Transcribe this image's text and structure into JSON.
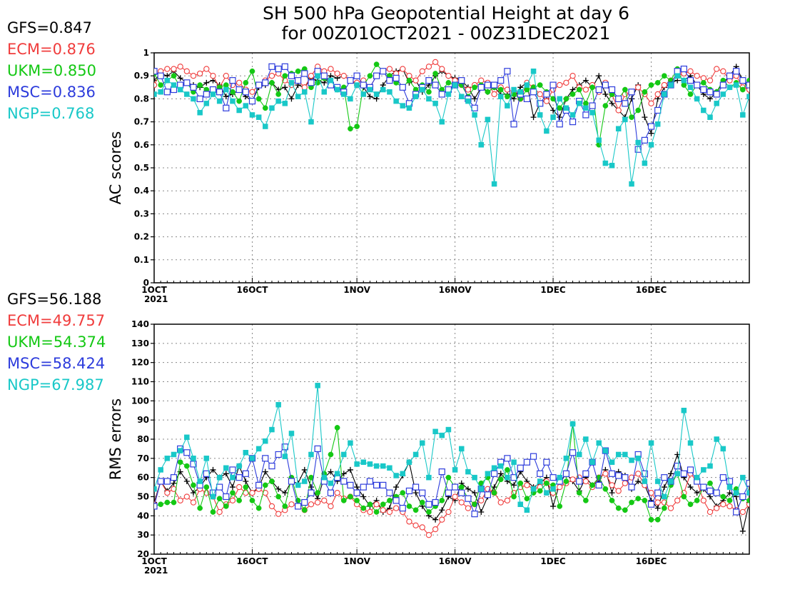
{
  "title": {
    "line1": "SH 500 hPa Geopotential Height at day 6",
    "line2": "for 00Z01OCT2021 - 00Z31DEC2021"
  },
  "colors": {
    "GFS": "#000000",
    "ECM": "#f03c3c",
    "UKM": "#14c814",
    "MSC": "#2d3cdc",
    "NGP": "#19c8c8"
  },
  "chart_data": [
    {
      "type": "line",
      "ylabel": "AC scores",
      "ylim": [
        0,
        1
      ],
      "yticks": [
        "0",
        "0.1",
        "0.2",
        "0.3",
        "0.4",
        "0.5",
        "0.6",
        "0.7",
        "0.8",
        "0.9",
        "1"
      ],
      "xlim": [
        1,
        92
      ],
      "xtick_days": [
        1,
        16,
        32,
        47,
        62,
        77
      ],
      "xtick_labels": [
        "1OCT",
        "16OCT",
        "1NOV",
        "16NOV",
        "1DEC",
        "16DEC"
      ],
      "xtick_year": "2021",
      "grid": true,
      "series": [
        {
          "name": "GFS",
          "score": "GFS=0.847",
          "marker": "plus",
          "values": [
            0.88,
            0.91,
            0.9,
            0.92,
            0.89,
            0.87,
            0.86,
            0.85,
            0.87,
            0.88,
            0.86,
            0.81,
            0.82,
            0.84,
            0.81,
            0.79,
            0.85,
            0.86,
            0.87,
            0.84,
            0.85,
            0.8,
            0.86,
            0.85,
            0.89,
            0.88,
            0.87,
            0.9,
            0.89,
            0.9,
            0.88,
            0.86,
            0.85,
            0.81,
            0.8,
            0.86,
            0.9,
            0.92,
            0.93,
            0.87,
            0.88,
            0.83,
            0.86,
            0.9,
            0.92,
            0.9,
            0.89,
            0.88,
            0.85,
            0.8,
            0.85,
            0.83,
            0.85,
            0.82,
            0.82,
            0.8,
            0.85,
            0.87,
            0.72,
            0.78,
            0.8,
            0.75,
            0.72,
            0.8,
            0.84,
            0.86,
            0.88,
            0.85,
            0.9,
            0.82,
            0.78,
            0.75,
            0.72,
            0.8,
            0.86,
            0.72,
            0.65,
            0.8,
            0.85,
            0.87,
            0.88,
            0.88,
            0.9,
            0.86,
            0.82,
            0.8,
            0.83,
            0.87,
            0.9,
            0.94,
            0.88,
            0.84
          ]
        },
        {
          "name": "ECM",
          "score": "ECM=0.876",
          "marker": "circle",
          "values": [
            0.86,
            0.92,
            0.93,
            0.93,
            0.94,
            0.92,
            0.9,
            0.91,
            0.93,
            0.9,
            0.85,
            0.9,
            0.86,
            0.87,
            0.84,
            0.83,
            0.86,
            0.88,
            0.9,
            0.91,
            0.88,
            0.86,
            0.88,
            0.85,
            0.9,
            0.94,
            0.92,
            0.93,
            0.91,
            0.9,
            0.88,
            0.87,
            0.88,
            0.85,
            0.9,
            0.92,
            0.93,
            0.91,
            0.93,
            0.9,
            0.88,
            0.92,
            0.94,
            0.96,
            0.93,
            0.9,
            0.88,
            0.86,
            0.84,
            0.86,
            0.88,
            0.87,
            0.82,
            0.85,
            0.84,
            0.83,
            0.8,
            0.87,
            0.85,
            0.82,
            0.79,
            0.84,
            0.86,
            0.87,
            0.9,
            0.85,
            0.84,
            0.86,
            0.83,
            0.87,
            0.82,
            0.75,
            0.82,
            0.83,
            0.85,
            0.82,
            0.78,
            0.82,
            0.86,
            0.88,
            0.9,
            0.91,
            0.92,
            0.9,
            0.89,
            0.88,
            0.93,
            0.92,
            0.88,
            0.9,
            0.85,
            0.84
          ]
        },
        {
          "name": "UKM",
          "score": "UKM=0.850",
          "marker": "dot",
          "values": [
            0.91,
            0.86,
            0.88,
            0.9,
            0.85,
            0.87,
            0.83,
            0.86,
            0.84,
            0.82,
            0.85,
            0.86,
            0.83,
            0.79,
            0.87,
            0.92,
            0.8,
            0.76,
            0.87,
            0.82,
            0.9,
            0.91,
            0.92,
            0.93,
            0.85,
            0.87,
            0.89,
            0.86,
            0.84,
            0.85,
            0.67,
            0.68,
            0.86,
            0.9,
            0.95,
            0.92,
            0.9,
            0.87,
            0.85,
            0.88,
            0.84,
            0.86,
            0.83,
            0.91,
            0.84,
            0.87,
            0.86,
            0.86,
            0.81,
            0.85,
            0.86,
            0.83,
            0.85,
            0.84,
            0.81,
            0.82,
            0.8,
            0.84,
            0.85,
            0.86,
            0.83,
            0.8,
            0.76,
            0.8,
            0.82,
            0.84,
            0.78,
            0.85,
            0.6,
            0.77,
            0.82,
            0.8,
            0.84,
            0.72,
            0.75,
            0.83,
            0.86,
            0.87,
            0.9,
            0.88,
            0.93,
            0.86,
            0.82,
            0.86,
            0.87,
            0.84,
            0.83,
            0.88,
            0.85,
            0.87,
            0.84,
            0.88
          ]
        },
        {
          "name": "MSC",
          "score": "MSC=0.836",
          "marker": "square",
          "values": [
            0.92,
            0.9,
            0.83,
            0.84,
            0.86,
            0.87,
            0.85,
            0.8,
            0.82,
            0.84,
            0.83,
            0.76,
            0.88,
            0.84,
            0.83,
            0.79,
            0.86,
            0.87,
            0.94,
            0.93,
            0.94,
            0.9,
            0.88,
            0.91,
            0.87,
            0.92,
            0.9,
            0.86,
            0.85,
            0.83,
            0.88,
            0.9,
            0.86,
            0.85,
            0.9,
            0.92,
            0.88,
            0.89,
            0.85,
            0.78,
            0.82,
            0.85,
            0.88,
            0.86,
            0.82,
            0.84,
            0.86,
            0.88,
            0.8,
            0.76,
            0.85,
            0.86,
            0.86,
            0.88,
            0.92,
            0.69,
            0.82,
            0.8,
            0.83,
            0.78,
            0.82,
            0.86,
            0.69,
            0.75,
            0.7,
            0.79,
            0.73,
            0.77,
            0.84,
            0.86,
            0.84,
            0.8,
            0.78,
            0.83,
            0.58,
            0.62,
            0.68,
            0.75,
            0.82,
            0.86,
            0.92,
            0.93,
            0.88,
            0.86,
            0.84,
            0.83,
            0.82,
            0.86,
            0.9,
            0.92,
            0.88,
            0.86
          ]
        },
        {
          "name": "NGP",
          "score": "NGP=0.768",
          "marker": "filled-square",
          "values": [
            0.82,
            0.83,
            0.88,
            0.86,
            0.84,
            0.82,
            0.8,
            0.74,
            0.78,
            0.82,
            0.79,
            0.84,
            0.79,
            0.75,
            0.77,
            0.73,
            0.72,
            0.68,
            0.76,
            0.79,
            0.78,
            0.87,
            0.81,
            0.83,
            0.7,
            0.9,
            0.83,
            0.88,
            0.84,
            0.82,
            0.8,
            0.86,
            0.82,
            0.84,
            0.82,
            0.84,
            0.83,
            0.79,
            0.77,
            0.76,
            0.81,
            0.84,
            0.8,
            0.78,
            0.7,
            0.82,
            0.86,
            0.81,
            0.79,
            0.73,
            0.6,
            0.71,
            0.43,
            0.81,
            0.77,
            0.84,
            0.83,
            0.86,
            0.92,
            0.73,
            0.66,
            0.72,
            0.8,
            0.76,
            0.73,
            0.78,
            0.76,
            0.74,
            0.62,
            0.52,
            0.51,
            0.67,
            0.71,
            0.43,
            0.61,
            0.52,
            0.6,
            0.69,
            0.82,
            0.86,
            0.9,
            0.88,
            0.85,
            0.8,
            0.75,
            0.72,
            0.78,
            0.82,
            0.85,
            0.86,
            0.73,
            0.81
          ]
        }
      ]
    },
    {
      "type": "line",
      "ylabel": "RMS errors",
      "ylim": [
        20,
        140
      ],
      "yticks": [
        "20",
        "30",
        "40",
        "50",
        "60",
        "70",
        "80",
        "90",
        "100",
        "110",
        "120",
        "130",
        "140"
      ],
      "xlim": [
        1,
        92
      ],
      "xtick_days": [
        1,
        16,
        32,
        47,
        62,
        77
      ],
      "xtick_labels": [
        "1OCT",
        "16OCT",
        "1NOV",
        "16NOV",
        "1DEC",
        "16DEC"
      ],
      "xtick_year": "2021",
      "grid": true,
      "series": [
        {
          "name": "GFS",
          "score": "GFS=56.188",
          "marker": "plus",
          "values": [
            47,
            58,
            53,
            57,
            63,
            58,
            52,
            55,
            60,
            64,
            60,
            62,
            55,
            66,
            58,
            52,
            55,
            63,
            58,
            54,
            52,
            58,
            57,
            64,
            55,
            49,
            60,
            63,
            58,
            62,
            64,
            55,
            50,
            45,
            48,
            42,
            44,
            55,
            61,
            68,
            52,
            45,
            40,
            38,
            43,
            50,
            48,
            57,
            54,
            52,
            42,
            50,
            55,
            62,
            58,
            56,
            63,
            58,
            55,
            57,
            60,
            45,
            57,
            62,
            58,
            53,
            60,
            56,
            58,
            64,
            52,
            63,
            61,
            54,
            58,
            56,
            48,
            44,
            55,
            62,
            72,
            60,
            55,
            52,
            54,
            50,
            45,
            48,
            52,
            50,
            32,
            47
          ]
        },
        {
          "name": "ECM",
          "score": "ECM=49.757",
          "marker": "circle",
          "values": [
            46,
            58,
            52,
            54,
            48,
            50,
            47,
            54,
            52,
            50,
            42,
            46,
            48,
            55,
            52,
            52,
            54,
            52,
            45,
            41,
            43,
            46,
            45,
            43,
            46,
            47,
            48,
            45,
            52,
            49,
            50,
            46,
            43,
            42,
            46,
            43,
            42,
            44,
            42,
            37,
            35,
            34,
            30,
            33,
            38,
            42,
            50,
            47,
            44,
            46,
            48,
            54,
            52,
            47,
            48,
            52,
            55,
            56,
            54,
            55,
            58,
            52,
            55,
            57,
            59,
            60,
            58,
            55,
            60,
            62,
            56,
            53,
            57,
            60,
            62,
            56,
            52,
            47,
            47,
            44,
            48,
            52,
            62,
            58,
            48,
            42,
            44,
            46,
            45,
            43,
            42,
            46
          ]
        },
        {
          "name": "UKM",
          "score": "UKM=54.374",
          "marker": "dot",
          "values": [
            45,
            46,
            47,
            47,
            68,
            66,
            56,
            44,
            55,
            42,
            49,
            45,
            52,
            48,
            55,
            48,
            44,
            56,
            58,
            50,
            45,
            60,
            48,
            43,
            60,
            52,
            62,
            72,
            86,
            48,
            50,
            48,
            44,
            46,
            42,
            46,
            48,
            50,
            52,
            45,
            43,
            47,
            42,
            45,
            48,
            60,
            55,
            55,
            49,
            46,
            57,
            60,
            52,
            59,
            64,
            50,
            57,
            49,
            52,
            53,
            57,
            56,
            45,
            58,
            88,
            52,
            48,
            56,
            60,
            54,
            48,
            44,
            43,
            47,
            49,
            48,
            38,
            38,
            44,
            56,
            62,
            50,
            46,
            48,
            55,
            57,
            52,
            50,
            48,
            54,
            49,
            48
          ]
        },
        {
          "name": "MSC",
          "score": "MSC=58.424",
          "marker": "square",
          "values": [
            45,
            58,
            58,
            60,
            75,
            73,
            67,
            56,
            62,
            52,
            55,
            50,
            64,
            60,
            62,
            70,
            56,
            70,
            66,
            72,
            76,
            58,
            45,
            47,
            52,
            75,
            58,
            52,
            60,
            58,
            56,
            52,
            55,
            58,
            56,
            56,
            52,
            48,
            44,
            53,
            55,
            52,
            46,
            47,
            63,
            52,
            55,
            52,
            49,
            41,
            54,
            51,
            62,
            68,
            70,
            60,
            65,
            68,
            71,
            62,
            68,
            60,
            58,
            62,
            73,
            58,
            62,
            68,
            56,
            74,
            62,
            61,
            60,
            55,
            72,
            62,
            46,
            52,
            60,
            58,
            66,
            62,
            64,
            58,
            55,
            53,
            52,
            60,
            58,
            42,
            50,
            57
          ]
        },
        {
          "name": "NGP",
          "score": "NGP=67.987",
          "marker": "filled-square",
          "values": [
            54,
            64,
            70,
            72,
            74,
            81,
            70,
            58,
            70,
            50,
            60,
            65,
            60,
            66,
            73,
            70,
            75,
            79,
            85,
            98,
            71,
            83,
            56,
            58,
            72,
            108,
            60,
            57,
            62,
            72,
            78,
            67,
            68,
            67,
            66,
            66,
            65,
            61,
            62,
            68,
            72,
            78,
            60,
            84,
            82,
            85,
            64,
            75,
            63,
            60,
            54,
            62,
            65,
            66,
            60,
            68,
            46,
            43,
            54,
            58,
            52,
            54,
            60,
            70,
            88,
            72,
            80,
            68,
            78,
            74,
            68,
            72,
            72,
            69,
            70,
            58,
            78,
            58,
            50,
            58,
            62,
            95,
            78,
            60,
            64,
            66,
            80,
            75,
            55,
            52,
            60,
            52
          ]
        }
      ]
    }
  ]
}
